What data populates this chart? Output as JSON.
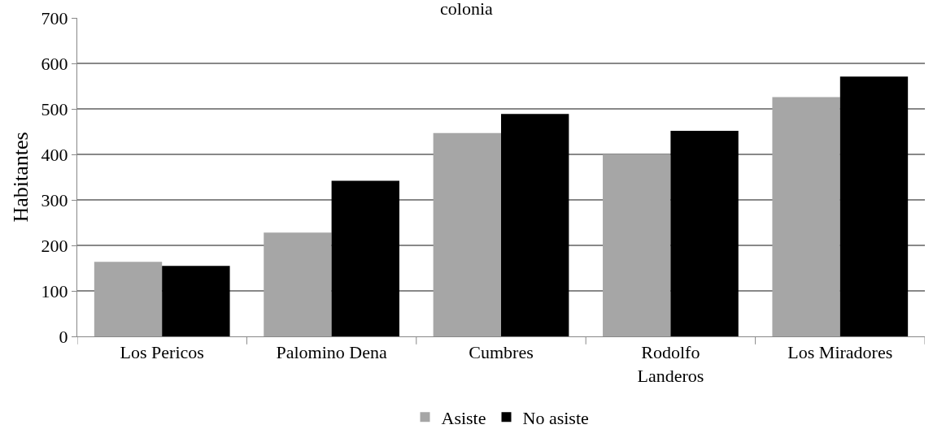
{
  "chart_data": {
    "type": "bar",
    "title": "colonia",
    "ylabel": "Habitantes",
    "categories": [
      "Los Pericos",
      "Palomino Dena",
      "Cumbres",
      "Rodolfo Landeros",
      "Los Miradores"
    ],
    "series": [
      {
        "name": "Asiste",
        "color": "#a6a6a6",
        "values": [
          164,
          228,
          447,
          400,
          526
        ]
      },
      {
        "name": "No asiste",
        "color": "#000000",
        "values": [
          155,
          342,
          489,
          452,
          571
        ]
      }
    ],
    "ylim": [
      0,
      700
    ],
    "yticks": [
      0,
      100,
      200,
      300,
      400,
      500,
      600,
      700
    ],
    "grid": "y",
    "legend": "bottom"
  }
}
